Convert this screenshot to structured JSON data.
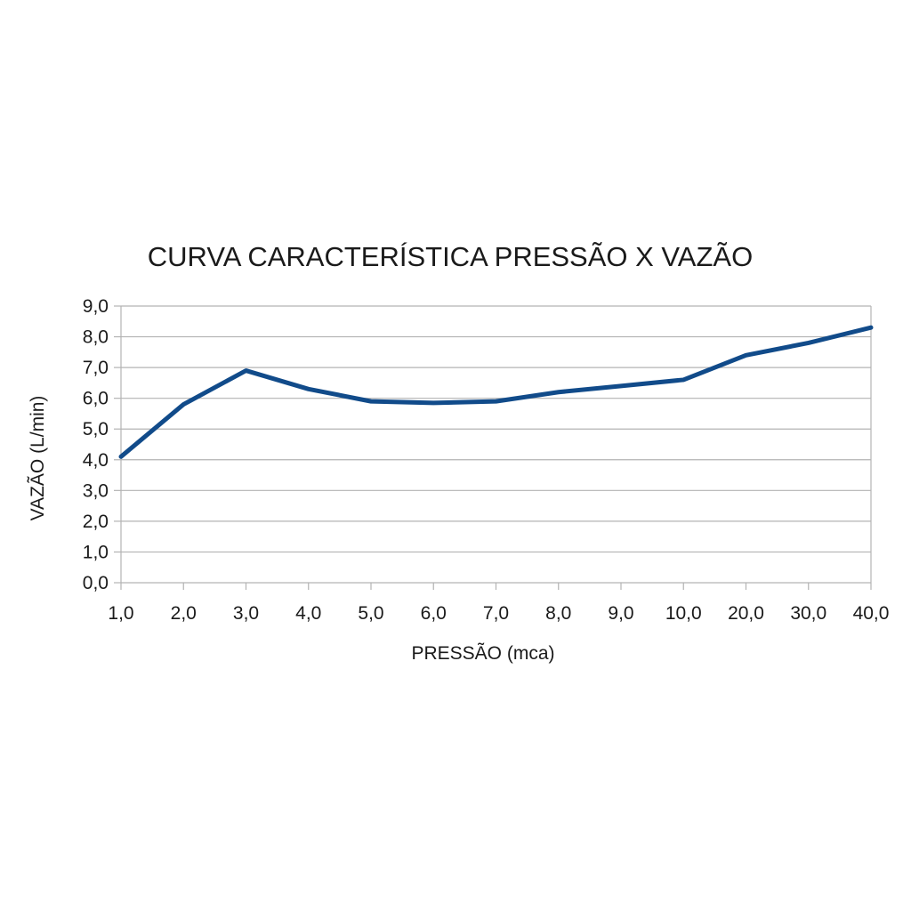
{
  "chart_data": {
    "type": "line",
    "title": "CURVA CARACTERÍSTICA PRESSÃO X VAZÃO",
    "xlabel": "PRESSÃO (mca)",
    "ylabel": "VAZÃO (L/min)",
    "categories": [
      "1,0",
      "2,0",
      "3,0",
      "4,0",
      "5,0",
      "6,0",
      "7,0",
      "8,0",
      "9,0",
      "10,0",
      "20,0",
      "30,0",
      "40,0"
    ],
    "yticks": [
      "0,0",
      "1,0",
      "2,0",
      "3,0",
      "4,0",
      "5,0",
      "6,0",
      "7,0",
      "8,0",
      "9,0"
    ],
    "ylim": [
      0,
      9
    ],
    "grid": true,
    "legend": "none",
    "series": [
      {
        "values": [
          4.1,
          5.8,
          6.9,
          6.3,
          5.9,
          5.85,
          5.9,
          6.2,
          6.4,
          6.6,
          7.4,
          7.8,
          8.3
        ],
        "color": "#114b8a"
      }
    ]
  }
}
